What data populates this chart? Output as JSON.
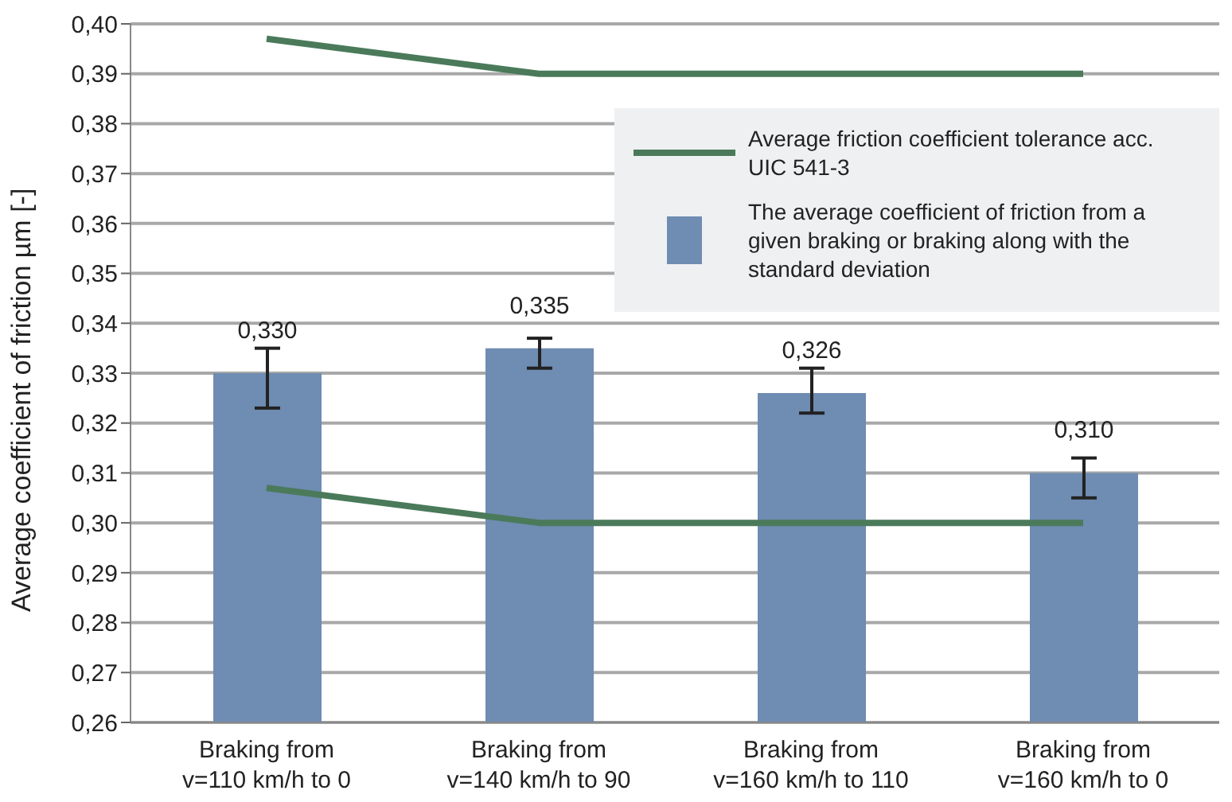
{
  "chart_data": {
    "type": "bar",
    "ylabel": "Average coefficient of friction µm [-]",
    "categories": [
      "Braking from v=110 km/h to 0",
      "Braking from v=140 km/h to 90",
      "Braking from v=160 km/h to 110",
      "Braking from v=160 km/h to 0"
    ],
    "ylim": [
      0.26,
      0.4
    ],
    "yticks": [
      {
        "value": 0.26,
        "label": "0,26"
      },
      {
        "value": 0.27,
        "label": "0,27"
      },
      {
        "value": 0.28,
        "label": "0,28"
      },
      {
        "value": 0.29,
        "label": "0,29"
      },
      {
        "value": 0.3,
        "label": "0,30"
      },
      {
        "value": 0.31,
        "label": "0,31"
      },
      {
        "value": 0.32,
        "label": "0,32"
      },
      {
        "value": 0.33,
        "label": "0,33"
      },
      {
        "value": 0.34,
        "label": "0,34"
      },
      {
        "value": 0.35,
        "label": "0,35"
      },
      {
        "value": 0.36,
        "label": "0,36"
      },
      {
        "value": 0.37,
        "label": "0,37"
      },
      {
        "value": 0.38,
        "label": "0,38"
      },
      {
        "value": 0.39,
        "label": "0,39"
      },
      {
        "value": 0.4,
        "label": "0,40"
      }
    ],
    "grid": "y",
    "legend": "top right",
    "series": [
      {
        "name": "The average coefficient of friction from a given braking or braking along with the standard deviation",
        "color": "#6f8cb2",
        "values": [
          0.33,
          0.335,
          0.326,
          0.31
        ],
        "errors": [
          [
            0.323,
            0.335
          ],
          [
            0.331,
            0.337
          ],
          [
            0.322,
            0.331
          ],
          [
            0.305,
            0.313
          ]
        ],
        "value_labels": [
          "0,330",
          "0,335",
          "0,326",
          "0,310"
        ]
      },
      {
        "type": "line",
        "name": "Average friction coefficient tolerance acc. UIC 541-3",
        "color": "#4a7a5a",
        "values": [
          0.397,
          0.39,
          0.39,
          0.39
        ]
      },
      {
        "type": "line",
        "color": "#4a7a5a",
        "values": [
          0.307,
          0.3,
          0.3,
          0.3
        ]
      }
    ]
  }
}
